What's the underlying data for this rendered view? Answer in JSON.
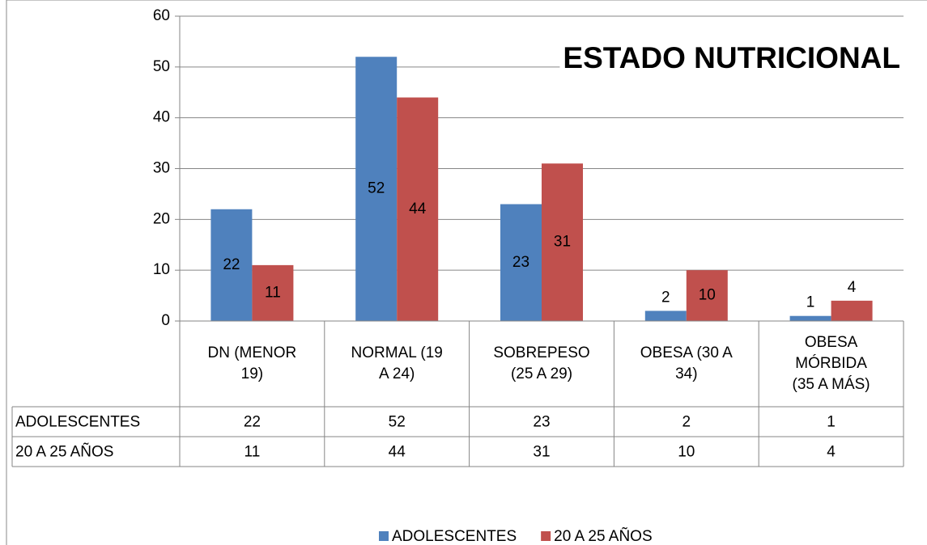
{
  "chart_data": {
    "type": "bar",
    "title": "ESTADO NUTRICIONAL",
    "categories": [
      "DN (MENOR 19)",
      "NORMAL (19 A 24)",
      "SOBREPESO (25 A 29)",
      "OBESA (30 A 34)",
      "OBESA MÓRBIDA (35 A MÁS)"
    ],
    "series": [
      {
        "name": "ADOLESCENTES",
        "color": "#4f81bd",
        "values": [
          22,
          52,
          23,
          2,
          1
        ]
      },
      {
        "name": "20 A 25 AÑOS",
        "color": "#c0504d",
        "values": [
          11,
          44,
          31,
          10,
          4
        ]
      }
    ],
    "ylim": [
      0,
      60
    ],
    "yticks": [
      0,
      10,
      20,
      30,
      40,
      50,
      60
    ],
    "grid": true,
    "legend": "bottom"
  }
}
